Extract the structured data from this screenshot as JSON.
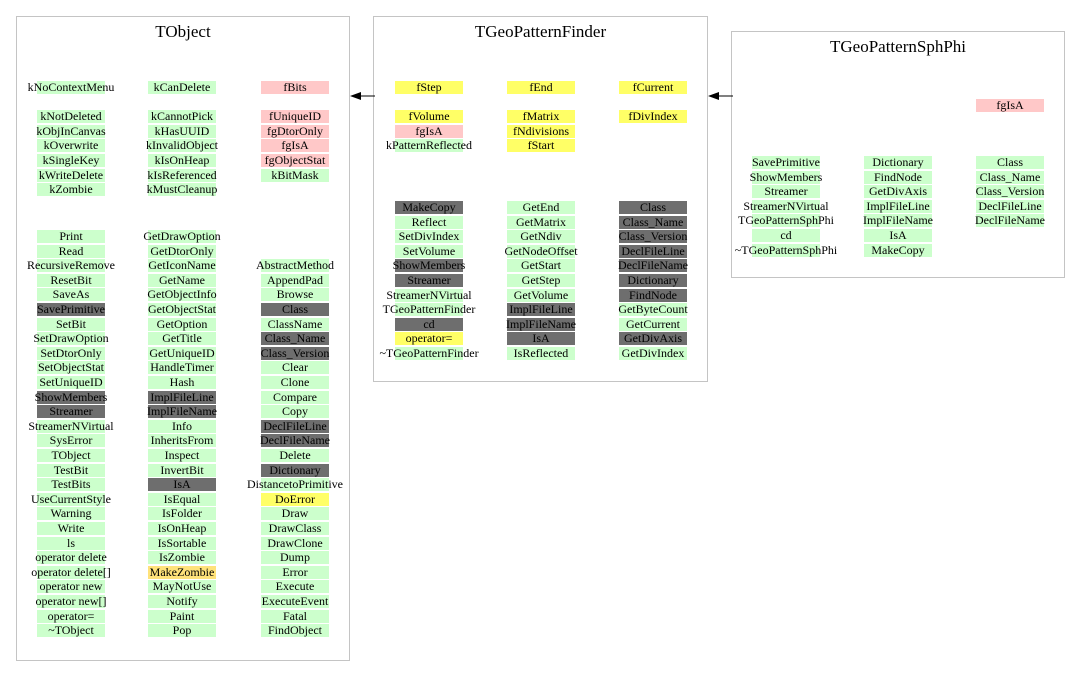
{
  "colors": {
    "data_member": "#ffc8c8",
    "base_data_member": "#ffc8c8",
    "method": "#ccffcc",
    "inherited_override": "#6e6e6e",
    "highlight": "#ffff66",
    "pale_highlight": "#ffe27a",
    "border": "#c4c4c4"
  },
  "arrows": [
    {
      "from": "TGeoPatternFinder",
      "to": "TObject"
    },
    {
      "from": "TGeoPatternSphPhi",
      "to": "TGeoPatternFinder"
    }
  ],
  "classes": [
    {
      "name": "TObject",
      "columns": [
        {
          "rows": [
            {
              "text": "kNoContextMenu",
              "style": "method"
            },
            {
              "text": "",
              "style": "none"
            },
            {
              "text": "kNotDeleted",
              "style": "method"
            },
            {
              "text": "kObjInCanvas",
              "style": "method"
            },
            {
              "text": "kOverwrite",
              "style": "method"
            },
            {
              "text": "kSingleKey",
              "style": "method"
            },
            {
              "text": "kWriteDelete",
              "style": "method"
            },
            {
              "text": "kZombie",
              "style": "method"
            }
          ],
          "startIndex": 0
        },
        {
          "rows": [
            {
              "text": "kCanDelete",
              "style": "method"
            },
            {
              "text": "",
              "style": "none"
            },
            {
              "text": "kCannotPick",
              "style": "method"
            },
            {
              "text": "kHasUUID",
              "style": "method"
            },
            {
              "text": "kInvalidObject",
              "style": "method"
            },
            {
              "text": "kIsOnHeap",
              "style": "method"
            },
            {
              "text": "kIsReferenced",
              "style": "method"
            },
            {
              "text": "kMustCleanup",
              "style": "method"
            }
          ],
          "startIndex": 0
        },
        {
          "rows": [
            {
              "text": "fBits",
              "style": "data_member"
            },
            {
              "text": "",
              "style": "none"
            },
            {
              "text": "fUniqueID",
              "style": "data_member"
            },
            {
              "text": "fgDtorOnly",
              "style": "data_member"
            },
            {
              "text": "fgIsA",
              "style": "data_member"
            },
            {
              "text": "fgObjectStat",
              "style": "data_member"
            },
            {
              "text": "kBitMask",
              "style": "method"
            }
          ],
          "startIndex": 0
        },
        {
          "rows": [
            {
              "text": "Print",
              "style": "method"
            },
            {
              "text": "Read",
              "style": "method"
            },
            {
              "text": "RecursiveRemove",
              "style": "method"
            },
            {
              "text": "ResetBit",
              "style": "method"
            },
            {
              "text": "SaveAs",
              "style": "method"
            },
            {
              "text": "SavePrimitive",
              "style": "inherited_override"
            },
            {
              "text": "SetBit",
              "style": "method"
            },
            {
              "text": "SetDrawOption",
              "style": "method"
            },
            {
              "text": "SetDtorOnly",
              "style": "method"
            },
            {
              "text": "SetObjectStat",
              "style": "method"
            },
            {
              "text": "SetUniqueID",
              "style": "method"
            },
            {
              "text": "ShowMembers",
              "style": "inherited_override"
            },
            {
              "text": "Streamer",
              "style": "inherited_override"
            },
            {
              "text": "StreamerNVirtual",
              "style": "method"
            },
            {
              "text": "SysError",
              "style": "method"
            },
            {
              "text": "TObject",
              "style": "method"
            },
            {
              "text": "TestBit",
              "style": "method"
            },
            {
              "text": "TestBits",
              "style": "method"
            },
            {
              "text": "UseCurrentStyle",
              "style": "method"
            },
            {
              "text": "Warning",
              "style": "method"
            },
            {
              "text": "Write",
              "style": "method"
            },
            {
              "text": "ls",
              "style": "method"
            },
            {
              "text": "operator delete",
              "style": "method"
            },
            {
              "text": "operator delete[]",
              "style": "method"
            },
            {
              "text": "operator new",
              "style": "method"
            },
            {
              "text": "operator new[]",
              "style": "method"
            },
            {
              "text": "operator=",
              "style": "method"
            },
            {
              "text": "~TObject",
              "style": "method"
            }
          ],
          "startIndex": 0
        },
        {
          "rows": [
            {
              "text": "GetDrawOption",
              "style": "method"
            },
            {
              "text": "GetDtorOnly",
              "style": "method"
            },
            {
              "text": "GetIconName",
              "style": "method"
            },
            {
              "text": "GetName",
              "style": "method"
            },
            {
              "text": "GetObjectInfo",
              "style": "method"
            },
            {
              "text": "GetObjectStat",
              "style": "method"
            },
            {
              "text": "GetOption",
              "style": "method"
            },
            {
              "text": "GetTitle",
              "style": "method"
            },
            {
              "text": "GetUniqueID",
              "style": "method"
            },
            {
              "text": "HandleTimer",
              "style": "method"
            },
            {
              "text": "Hash",
              "style": "method"
            },
            {
              "text": "ImplFileLine",
              "style": "inherited_override"
            },
            {
              "text": "ImplFileName",
              "style": "inherited_override"
            },
            {
              "text": "Info",
              "style": "method"
            },
            {
              "text": "InheritsFrom",
              "style": "method"
            },
            {
              "text": "Inspect",
              "style": "method"
            },
            {
              "text": "InvertBit",
              "style": "method"
            },
            {
              "text": "IsA",
              "style": "inherited_override"
            },
            {
              "text": "IsEqual",
              "style": "method"
            },
            {
              "text": "IsFolder",
              "style": "method"
            },
            {
              "text": "IsOnHeap",
              "style": "method"
            },
            {
              "text": "IsSortable",
              "style": "method"
            },
            {
              "text": "IsZombie",
              "style": "method"
            },
            {
              "text": "MakeZombie",
              "style": "pale_highlight"
            },
            {
              "text": "MayNotUse",
              "style": "method"
            },
            {
              "text": "Notify",
              "style": "method"
            },
            {
              "text": "Paint",
              "style": "method"
            },
            {
              "text": "Pop",
              "style": "method"
            }
          ],
          "startIndex": 0
        },
        {
          "rows": [
            {
              "text": "AbstractMethod",
              "style": "method"
            },
            {
              "text": "AppendPad",
              "style": "method"
            },
            {
              "text": "Browse",
              "style": "method"
            },
            {
              "text": "Class",
              "style": "inherited_override"
            },
            {
              "text": "ClassName",
              "style": "method"
            },
            {
              "text": "Class_Name",
              "style": "inherited_override"
            },
            {
              "text": "Class_Version",
              "style": "inherited_override"
            },
            {
              "text": "Clear",
              "style": "method"
            },
            {
              "text": "Clone",
              "style": "method"
            },
            {
              "text": "Compare",
              "style": "method"
            },
            {
              "text": "Copy",
              "style": "method"
            },
            {
              "text": "DeclFileLine",
              "style": "inherited_override"
            },
            {
              "text": "DeclFileName",
              "style": "inherited_override"
            },
            {
              "text": "Delete",
              "style": "method"
            },
            {
              "text": "Dictionary",
              "style": "inherited_override"
            },
            {
              "text": "DistancetoPrimitive",
              "style": "method"
            },
            {
              "text": "DoError",
              "style": "highlight"
            },
            {
              "text": "Draw",
              "style": "method"
            },
            {
              "text": "DrawClass",
              "style": "method"
            },
            {
              "text": "DrawClone",
              "style": "method"
            },
            {
              "text": "Dump",
              "style": "method"
            },
            {
              "text": "Error",
              "style": "method"
            },
            {
              "text": "Execute",
              "style": "method"
            },
            {
              "text": "ExecuteEvent",
              "style": "method"
            },
            {
              "text": "Fatal",
              "style": "method"
            },
            {
              "text": "FindObject",
              "style": "method"
            }
          ],
          "startIndex": 2
        }
      ]
    },
    {
      "name": "TGeoPatternFinder",
      "columns": [
        {
          "rows": [
            {
              "text": "fStep",
              "style": "highlight"
            },
            {
              "text": "",
              "style": "none"
            },
            {
              "text": "fVolume",
              "style": "highlight"
            },
            {
              "text": "fgIsA",
              "style": "data_member"
            },
            {
              "text": "kPatternReflected",
              "style": "method"
            }
          ],
          "startIndex": 0
        },
        {
          "rows": [
            {
              "text": "fEnd",
              "style": "highlight"
            },
            {
              "text": "",
              "style": "none"
            },
            {
              "text": "fMatrix",
              "style": "highlight"
            },
            {
              "text": "fNdivisions",
              "style": "highlight"
            },
            {
              "text": "fStart",
              "style": "highlight"
            }
          ],
          "startIndex": 0
        },
        {
          "rows": [
            {
              "text": "fCurrent",
              "style": "highlight"
            },
            {
              "text": "",
              "style": "none"
            },
            {
              "text": "fDivIndex",
              "style": "highlight"
            }
          ],
          "startIndex": 0
        },
        {
          "rows": [
            {
              "text": "MakeCopy",
              "style": "inherited_override"
            },
            {
              "text": "Reflect",
              "style": "method"
            },
            {
              "text": "SetDivIndex",
              "style": "method"
            },
            {
              "text": "SetVolume",
              "style": "method"
            },
            {
              "text": "ShowMembers",
              "style": "inherited_override"
            },
            {
              "text": "Streamer",
              "style": "inherited_override"
            },
            {
              "text": "StreamerNVirtual",
              "style": "method"
            },
            {
              "text": "TGeoPatternFinder",
              "style": "method"
            },
            {
              "text": "cd",
              "style": "inherited_override"
            },
            {
              "text": "operator=",
              "style": "highlight"
            },
            {
              "text": "~TGeoPatternFinder",
              "style": "method"
            }
          ],
          "startIndex": 0
        },
        {
          "rows": [
            {
              "text": "GetEnd",
              "style": "method"
            },
            {
              "text": "GetMatrix",
              "style": "method"
            },
            {
              "text": "GetNdiv",
              "style": "method"
            },
            {
              "text": "GetNodeOffset",
              "style": "method"
            },
            {
              "text": "GetStart",
              "style": "method"
            },
            {
              "text": "GetStep",
              "style": "method"
            },
            {
              "text": "GetVolume",
              "style": "method"
            },
            {
              "text": "ImplFileLine",
              "style": "inherited_override"
            },
            {
              "text": "ImplFileName",
              "style": "inherited_override"
            },
            {
              "text": "IsA",
              "style": "inherited_override"
            },
            {
              "text": "IsReflected",
              "style": "method"
            }
          ],
          "startIndex": 0
        },
        {
          "rows": [
            {
              "text": "Class",
              "style": "inherited_override"
            },
            {
              "text": "Class_Name",
              "style": "inherited_override"
            },
            {
              "text": "Class_Version",
              "style": "inherited_override"
            },
            {
              "text": "DeclFileLine",
              "style": "inherited_override"
            },
            {
              "text": "DeclFileName",
              "style": "inherited_override"
            },
            {
              "text": "Dictionary",
              "style": "inherited_override"
            },
            {
              "text": "FindNode",
              "style": "inherited_override"
            },
            {
              "text": "GetByteCount",
              "style": "method"
            },
            {
              "text": "GetCurrent",
              "style": "method"
            },
            {
              "text": "GetDivAxis",
              "style": "inherited_override"
            },
            {
              "text": "GetDivIndex",
              "style": "method"
            }
          ],
          "startIndex": 0
        }
      ]
    },
    {
      "name": "TGeoPatternSphPhi",
      "columns": [
        {
          "rows": [
            {
              "text": "fgIsA",
              "style": "data_member"
            }
          ],
          "startIndex": 0
        },
        {
          "rows": [
            {
              "text": "SavePrimitive",
              "style": "method"
            },
            {
              "text": "ShowMembers",
              "style": "method"
            },
            {
              "text": "Streamer",
              "style": "method"
            },
            {
              "text": "StreamerNVirtual",
              "style": "method"
            },
            {
              "text": "TGeoPatternSphPhi",
              "style": "method"
            },
            {
              "text": "cd",
              "style": "method"
            },
            {
              "text": "~TGeoPatternSphPhi",
              "style": "method"
            }
          ],
          "startIndex": 0
        },
        {
          "rows": [
            {
              "text": "Dictionary",
              "style": "method"
            },
            {
              "text": "FindNode",
              "style": "method"
            },
            {
              "text": "GetDivAxis",
              "style": "method"
            },
            {
              "text": "ImplFileLine",
              "style": "method"
            },
            {
              "text": "ImplFileName",
              "style": "method"
            },
            {
              "text": "IsA",
              "style": "method"
            },
            {
              "text": "MakeCopy",
              "style": "method"
            }
          ],
          "startIndex": 0
        },
        {
          "rows": [
            {
              "text": "Class",
              "style": "method"
            },
            {
              "text": "Class_Name",
              "style": "method"
            },
            {
              "text": "Class_Version",
              "style": "method"
            },
            {
              "text": "DeclFileLine",
              "style": "method"
            },
            {
              "text": "DeclFileName",
              "style": "method"
            }
          ],
          "startIndex": 0
        }
      ]
    }
  ]
}
